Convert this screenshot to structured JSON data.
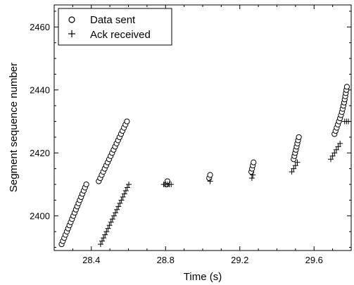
{
  "chart_data": {
    "type": "scatter",
    "xlabel": "Time (s)",
    "ylabel": "Segment sequence number",
    "xlim": [
      28.2,
      29.8
    ],
    "ylim": [
      2389,
      2467
    ],
    "xticks": [
      28.4,
      28.8,
      29.2,
      29.6
    ],
    "yticks": [
      2400,
      2420,
      2440,
      2460
    ],
    "xtick_labels": [
      "28.4",
      "28.8",
      "29.2",
      "29.6"
    ],
    "ytick_labels": [
      "2400",
      "2420",
      "2440",
      "2460"
    ],
    "x_minor_step": 0.1,
    "y_minor_step": 5,
    "legend_position": "top-left",
    "series": [
      {
        "name": "Data sent",
        "marker": "circle",
        "points": [
          [
            28.24,
            2391
          ],
          [
            28.247,
            2392
          ],
          [
            28.254,
            2393
          ],
          [
            28.261,
            2394
          ],
          [
            28.268,
            2395
          ],
          [
            28.275,
            2396
          ],
          [
            28.282,
            2397
          ],
          [
            28.289,
            2398
          ],
          [
            28.296,
            2399
          ],
          [
            28.303,
            2400
          ],
          [
            28.31,
            2401
          ],
          [
            28.317,
            2402
          ],
          [
            28.324,
            2403
          ],
          [
            28.331,
            2404
          ],
          [
            28.338,
            2405
          ],
          [
            28.345,
            2406
          ],
          [
            28.352,
            2407
          ],
          [
            28.359,
            2408
          ],
          [
            28.366,
            2409
          ],
          [
            28.373,
            2410
          ],
          [
            28.44,
            2411
          ],
          [
            28.448,
            2412
          ],
          [
            28.456,
            2413
          ],
          [
            28.464,
            2414
          ],
          [
            28.472,
            2415
          ],
          [
            28.48,
            2416
          ],
          [
            28.488,
            2417
          ],
          [
            28.496,
            2418
          ],
          [
            28.504,
            2419
          ],
          [
            28.512,
            2420
          ],
          [
            28.52,
            2421
          ],
          [
            28.528,
            2422
          ],
          [
            28.536,
            2423
          ],
          [
            28.544,
            2424
          ],
          [
            28.552,
            2425
          ],
          [
            28.56,
            2426
          ],
          [
            28.568,
            2427
          ],
          [
            28.576,
            2428
          ],
          [
            28.584,
            2429
          ],
          [
            28.592,
            2430
          ],
          [
            28.805,
            2410
          ],
          [
            28.81,
            2411
          ],
          [
            29.035,
            2412
          ],
          [
            29.04,
            2413
          ],
          [
            29.262,
            2414
          ],
          [
            29.266,
            2415
          ],
          [
            29.27,
            2416
          ],
          [
            29.274,
            2417
          ],
          [
            29.49,
            2418
          ],
          [
            29.494,
            2419
          ],
          [
            29.498,
            2420
          ],
          [
            29.502,
            2421
          ],
          [
            29.506,
            2422
          ],
          [
            29.51,
            2423
          ],
          [
            29.514,
            2424
          ],
          [
            29.518,
            2425
          ],
          [
            29.71,
            2426
          ],
          [
            29.716,
            2427
          ],
          [
            29.722,
            2428
          ],
          [
            29.728,
            2429
          ],
          [
            29.734,
            2430
          ],
          [
            29.74,
            2431
          ],
          [
            29.745,
            2432
          ],
          [
            29.75,
            2433
          ],
          [
            29.754,
            2434
          ],
          [
            29.758,
            2435
          ],
          [
            29.762,
            2436
          ],
          [
            29.765,
            2437
          ],
          [
            29.768,
            2438
          ],
          [
            29.771,
            2439
          ],
          [
            29.774,
            2440
          ],
          [
            29.777,
            2441
          ]
        ]
      },
      {
        "name": "Ack received",
        "marker": "plus",
        "points": [
          [
            28.45,
            2391
          ],
          [
            28.458,
            2392
          ],
          [
            28.466,
            2393
          ],
          [
            28.474,
            2394
          ],
          [
            28.482,
            2395
          ],
          [
            28.49,
            2396
          ],
          [
            28.498,
            2397
          ],
          [
            28.506,
            2398
          ],
          [
            28.514,
            2399
          ],
          [
            28.522,
            2400
          ],
          [
            28.53,
            2401
          ],
          [
            28.538,
            2402
          ],
          [
            28.546,
            2403
          ],
          [
            28.554,
            2404
          ],
          [
            28.562,
            2405
          ],
          [
            28.57,
            2406
          ],
          [
            28.578,
            2407
          ],
          [
            28.586,
            2408
          ],
          [
            28.594,
            2409
          ],
          [
            28.602,
            2410
          ],
          [
            28.79,
            2410
          ],
          [
            28.8,
            2410
          ],
          [
            28.81,
            2410
          ],
          [
            28.82,
            2410
          ],
          [
            28.83,
            2410
          ],
          [
            29.04,
            2411
          ],
          [
            29.265,
            2412
          ],
          [
            29.27,
            2413
          ],
          [
            29.48,
            2414
          ],
          [
            29.49,
            2415
          ],
          [
            29.5,
            2416
          ],
          [
            29.51,
            2417
          ],
          [
            29.69,
            2418
          ],
          [
            29.7,
            2419
          ],
          [
            29.71,
            2420
          ],
          [
            29.72,
            2421
          ],
          [
            29.73,
            2422
          ],
          [
            29.74,
            2423
          ],
          [
            29.765,
            2430
          ],
          [
            29.775,
            2430
          ],
          [
            29.785,
            2430
          ]
        ]
      }
    ]
  }
}
